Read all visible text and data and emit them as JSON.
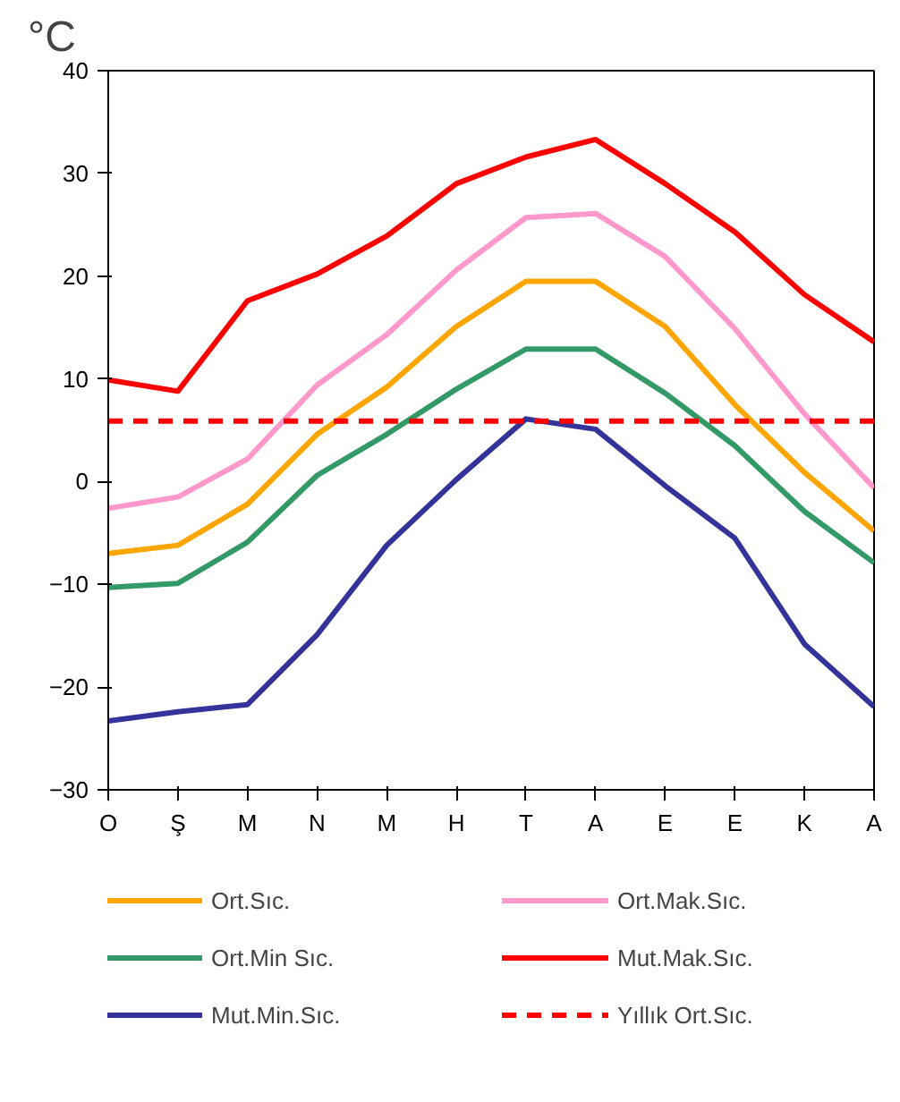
{
  "chart_data": {
    "type": "line",
    "ylabel": "°C",
    "categories": [
      "O",
      "Ş",
      "M",
      "N",
      "M",
      "H",
      "T",
      "A",
      "E",
      "E",
      "K",
      "A"
    ],
    "ylim": [
      -30,
      40
    ],
    "yticks": [
      -30,
      -20,
      -10,
      0,
      10,
      20,
      30,
      40
    ],
    "grid": false,
    "legend": "bottom",
    "line_style": "solid",
    "marker": "none",
    "series": [
      {
        "name": "Ort.Sıc.",
        "color": "#ffa500",
        "values": [
          -7,
          -6.2,
          -2.2,
          4.6,
          9.2,
          15.1,
          19.5,
          19.5,
          15.1,
          7.5,
          0.9,
          -4.8
        ]
      },
      {
        "name": "Ort.Mak.Sıc.",
        "color": "#ff99cc",
        "values": [
          -2.6,
          -1.5,
          2.2,
          9.4,
          14.3,
          20.6,
          25.7,
          26.1,
          21.9,
          14.9,
          6.6,
          -0.6
        ]
      },
      {
        "name": "Ort.Min Sıc.",
        "color": "#339966",
        "values": [
          -10.3,
          -9.9,
          -5.9,
          0.6,
          4.6,
          9,
          12.9,
          12.9,
          8.6,
          3.5,
          -2.9,
          -7.9
        ]
      },
      {
        "name": "Mut.Mak.Sıc.",
        "color": "#ff0000",
        "values": [
          9.9,
          8.8,
          17.6,
          20.2,
          23.9,
          29,
          31.6,
          33.3,
          29,
          24.3,
          18.2,
          13.6
        ]
      },
      {
        "name": "Mut.Min.Sıc.",
        "color": "#333399",
        "values": [
          -23.3,
          -22.4,
          -21.7,
          -14.9,
          -6.2,
          0.2,
          6.1,
          5.1,
          -0.4,
          -5.5,
          -15.8,
          -21.9
        ]
      }
    ],
    "ref_lines": [
      {
        "axis": "y",
        "value": 5.9,
        "label": "Yıllık Ort.Sıc.",
        "color": "#ff0000",
        "line_style": "dashed"
      }
    ]
  }
}
